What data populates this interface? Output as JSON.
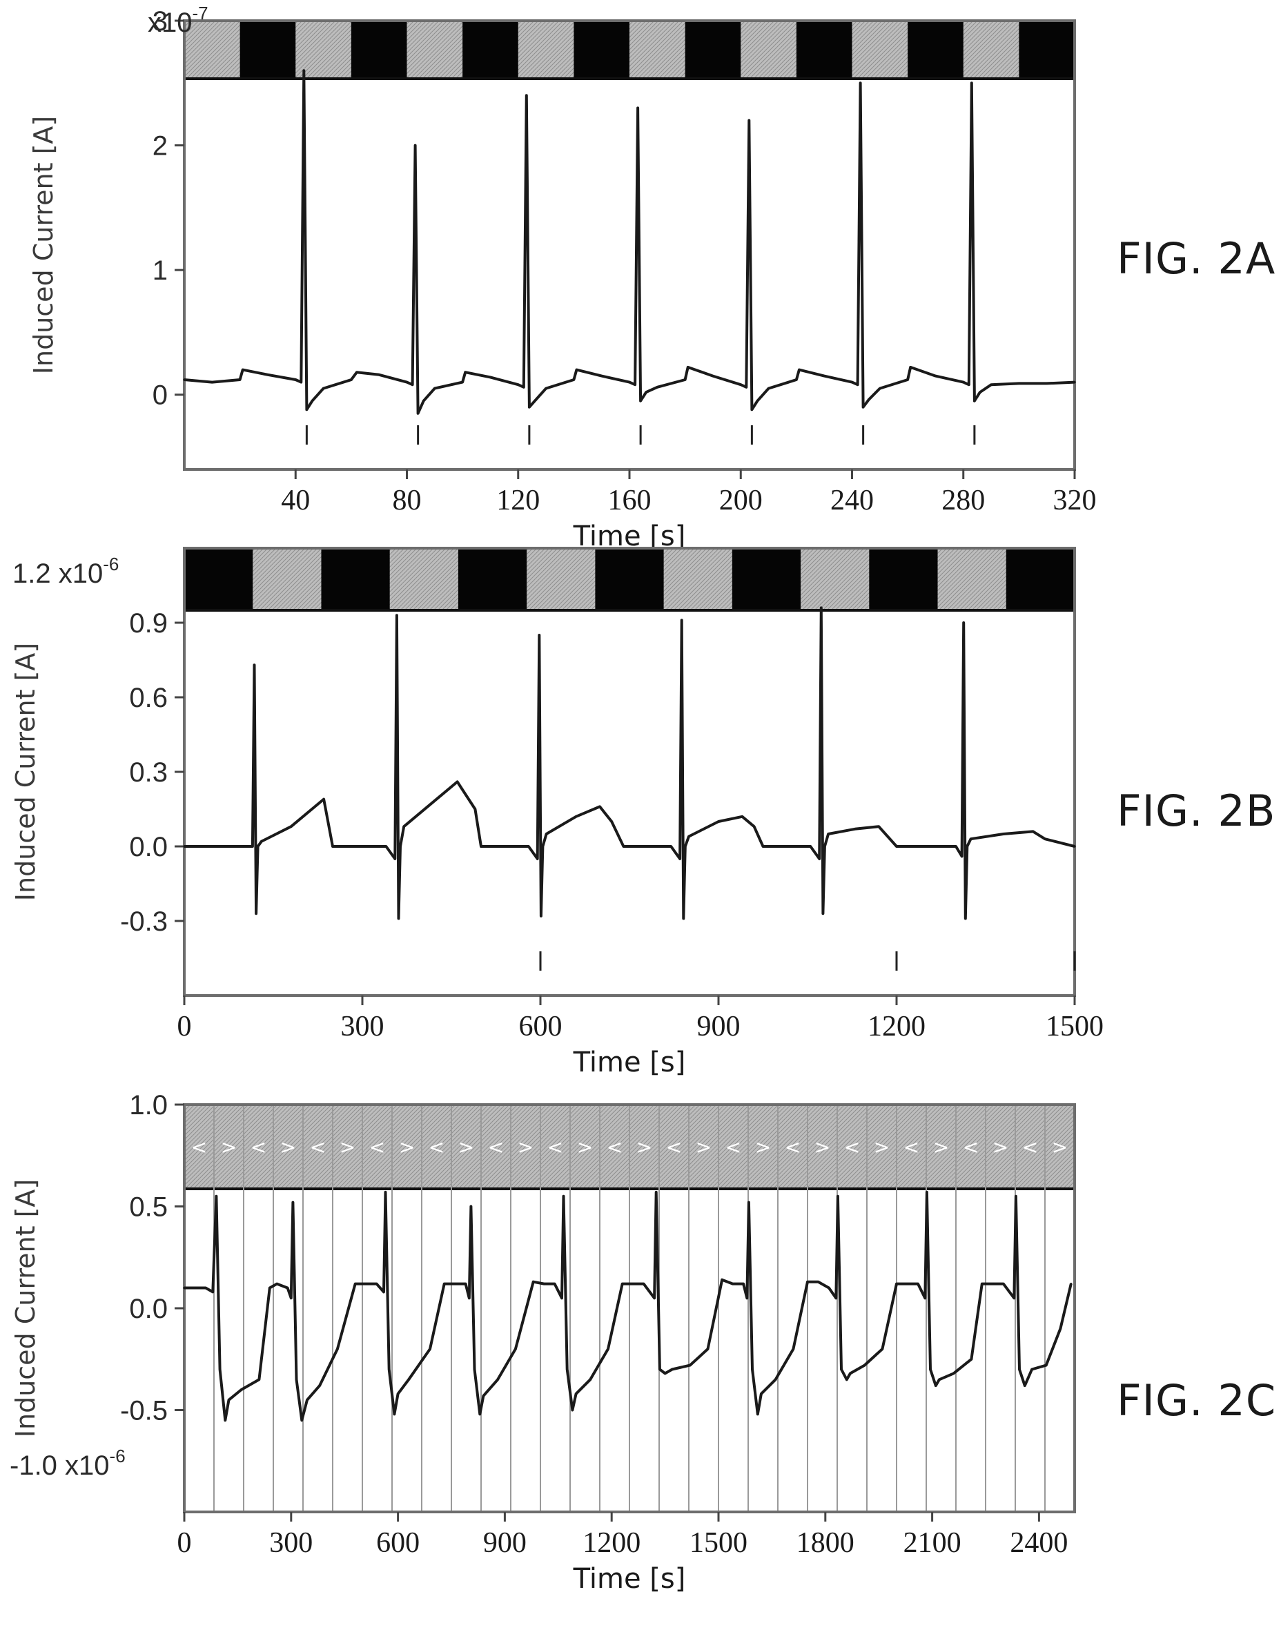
{
  "chart_data": [
    {
      "id": "fig2a",
      "type": "line",
      "figure_label": "FIG. 2A",
      "ylabel": "Induced Current [A]",
      "y_multiplier": "x10",
      "y_exponent": "-7",
      "xlabel": "Time [s]",
      "xticks": [
        "40",
        "80",
        "120",
        "160",
        "200",
        "240",
        "280",
        "320"
      ],
      "yticks": [
        "0",
        "1",
        "2",
        "3"
      ],
      "xlim": [
        0,
        320
      ],
      "ylim": [
        -0.6,
        3
      ],
      "stimulus_bar": [
        "gray",
        "black",
        "gray",
        "black",
        "gray",
        "black",
        "gray",
        "black",
        "gray",
        "black",
        "gray",
        "black",
        "gray",
        "black",
        "gray",
        "black"
      ],
      "series": [
        {
          "x": [
            0,
            10,
            20,
            21,
            30,
            40,
            42,
            43,
            44,
            46,
            50,
            60,
            62,
            70,
            80,
            82,
            83,
            84,
            86,
            90,
            100,
            101,
            110,
            120,
            122,
            123,
            124,
            126,
            130,
            140,
            141,
            150,
            160,
            162,
            163,
            164,
            166,
            170,
            180,
            181,
            190,
            200,
            202,
            203,
            204,
            206,
            210,
            220,
            221,
            230,
            240,
            242,
            243,
            244,
            246,
            250,
            260,
            261,
            270,
            280,
            282,
            283,
            284,
            286,
            290,
            300,
            310,
            320
          ],
          "y": [
            0.12,
            0.1,
            0.12,
            0.2,
            0.16,
            0.12,
            0.1,
            2.6,
            -0.12,
            -0.05,
            0.05,
            0.12,
            0.18,
            0.16,
            0.1,
            0.08,
            2.0,
            -0.15,
            -0.05,
            0.05,
            0.1,
            0.18,
            0.14,
            0.08,
            0.06,
            2.4,
            -0.1,
            -0.05,
            0.05,
            0.12,
            0.2,
            0.15,
            0.1,
            0.08,
            2.3,
            -0.05,
            0.02,
            0.06,
            0.12,
            0.22,
            0.15,
            0.08,
            0.06,
            2.2,
            -0.12,
            -0.05,
            0.05,
            0.12,
            0.2,
            0.15,
            0.1,
            0.08,
            2.5,
            -0.1,
            -0.04,
            0.05,
            0.12,
            0.22,
            0.15,
            0.1,
            0.08,
            2.5,
            -0.05,
            0.02,
            0.08,
            0.09,
            0.09,
            0.1
          ]
        }
      ]
    },
    {
      "id": "fig2b",
      "type": "line",
      "figure_label": "FIG. 2B",
      "ylabel": "Induced Current [A]",
      "y_multiplier": "1.2 x10",
      "y_exponent": "-6",
      "xlabel": "Time [s]",
      "xticks": [
        "0",
        "300",
        "600",
        "900",
        "1200",
        "1500"
      ],
      "yticks": [
        "-0.3",
        "0.0",
        "0.3",
        "0.6",
        "0.9"
      ],
      "xlim": [
        0,
        1500
      ],
      "ylim": [
        -0.6,
        1.2
      ],
      "stimulus_bar": [
        "black",
        "gray",
        "black",
        "gray",
        "black",
        "gray",
        "black",
        "gray",
        "black",
        "gray",
        "black",
        "gray",
        "black"
      ],
      "series": [
        {
          "x": [
            0,
            100,
            115,
            118,
            121,
            124,
            130,
            180,
            235,
            250,
            260,
            340,
            355,
            358,
            361,
            364,
            370,
            420,
            460,
            490,
            500,
            580,
            595,
            598,
            601,
            604,
            610,
            660,
            700,
            720,
            740,
            820,
            835,
            838,
            841,
            844,
            850,
            900,
            940,
            960,
            975,
            1055,
            1070,
            1073,
            1076,
            1079,
            1085,
            1130,
            1170,
            1200,
            1300,
            1310,
            1313,
            1316,
            1319,
            1325,
            1380,
            1430,
            1450,
            1500
          ],
          "y": [
            0.0,
            0.0,
            0.0,
            0.73,
            -0.27,
            0.0,
            0.02,
            0.08,
            0.19,
            0.0,
            0.0,
            0.0,
            -0.05,
            0.93,
            -0.29,
            0.0,
            0.08,
            0.18,
            0.26,
            0.15,
            0.0,
            0.0,
            -0.05,
            0.85,
            -0.28,
            0.0,
            0.05,
            0.12,
            0.16,
            0.1,
            0.0,
            0.0,
            -0.05,
            0.91,
            -0.29,
            0.0,
            0.04,
            0.1,
            0.12,
            0.08,
            0.0,
            0.0,
            -0.05,
            0.96,
            -0.27,
            0.0,
            0.05,
            0.07,
            0.08,
            0.0,
            0.0,
            -0.04,
            0.9,
            -0.29,
            0.0,
            0.03,
            0.05,
            0.06,
            0.03,
            0.0
          ]
        }
      ]
    },
    {
      "id": "fig2c",
      "type": "line",
      "figure_label": "FIG. 2C",
      "ylabel": "Induced Current [A]",
      "y_exponent_label": "-1.0 x10",
      "y_exponent": "-6",
      "xlabel": "Time [s]",
      "xticks": [
        "0",
        "300",
        "600",
        "900",
        "1200",
        "1500",
        "1800",
        "2100",
        "2400"
      ],
      "yticks": [
        "-0.5",
        "0.0",
        "0.5",
        "1.0"
      ],
      "xlim": [
        0,
        2500
      ],
      "ylim": [
        -1.0,
        1.0
      ],
      "stimulus_bar": [
        "gray"
      ],
      "stimulus_markers": [
        "<",
        ">",
        "<",
        ">",
        "<",
        ">",
        "<",
        ">",
        "<",
        ">",
        "<",
        ">",
        "<",
        ">",
        "<",
        ">",
        "<",
        ">",
        "<",
        ">",
        "<",
        ">",
        "<",
        ">",
        "<",
        ">",
        "<",
        ">",
        "<",
        ">"
      ],
      "series": [
        {
          "x": [
            0,
            60,
            80,
            90,
            100,
            115,
            125,
            160,
            210,
            240,
            260,
            290,
            300,
            305,
            315,
            330,
            345,
            380,
            430,
            480,
            510,
            540,
            560,
            565,
            575,
            590,
            600,
            630,
            690,
            730,
            760,
            790,
            800,
            805,
            815,
            830,
            840,
            880,
            930,
            980,
            1010,
            1040,
            1060,
            1065,
            1075,
            1090,
            1100,
            1140,
            1190,
            1230,
            1260,
            1290,
            1320,
            1325,
            1335,
            1350,
            1370,
            1420,
            1470,
            1510,
            1540,
            1570,
            1580,
            1585,
            1595,
            1610,
            1620,
            1660,
            1710,
            1750,
            1780,
            1810,
            1830,
            1835,
            1845,
            1860,
            1870,
            1910,
            1960,
            2000,
            2030,
            2060,
            2080,
            2085,
            2095,
            2110,
            2120,
            2160,
            2210,
            2240,
            2270,
            2300,
            2330,
            2335,
            2345,
            2360,
            2380,
            2420,
            2460,
            2490
          ],
          "y": [
            0.1,
            0.1,
            0.08,
            0.55,
            -0.3,
            -0.55,
            -0.45,
            -0.4,
            -0.35,
            0.1,
            0.12,
            0.1,
            0.05,
            0.52,
            -0.35,
            -0.55,
            -0.45,
            -0.38,
            -0.2,
            0.12,
            0.12,
            0.12,
            0.08,
            0.57,
            -0.3,
            -0.52,
            -0.42,
            -0.35,
            -0.2,
            0.12,
            0.12,
            0.12,
            0.05,
            0.5,
            -0.3,
            -0.52,
            -0.43,
            -0.35,
            -0.2,
            0.13,
            0.12,
            0.12,
            0.05,
            0.55,
            -0.3,
            -0.5,
            -0.42,
            -0.35,
            -0.2,
            0.12,
            0.12,
            0.12,
            0.05,
            0.57,
            -0.3,
            -0.32,
            -0.3,
            -0.28,
            -0.2,
            0.14,
            0.12,
            0.12,
            0.05,
            0.52,
            -0.3,
            -0.52,
            -0.42,
            -0.35,
            -0.2,
            0.13,
            0.13,
            0.1,
            0.05,
            0.55,
            -0.3,
            -0.35,
            -0.32,
            -0.28,
            -0.2,
            0.12,
            0.12,
            0.12,
            0.05,
            0.57,
            -0.3,
            -0.38,
            -0.35,
            -0.32,
            -0.25,
            0.12,
            0.12,
            0.12,
            0.05,
            0.55,
            -0.3,
            -0.38,
            -0.3,
            -0.28,
            -0.1,
            0.12
          ]
        }
      ]
    }
  ]
}
